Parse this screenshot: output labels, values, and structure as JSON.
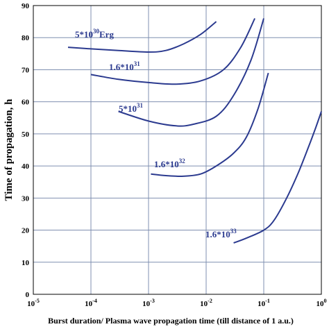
{
  "chart_data": {
    "type": "line",
    "title": "",
    "xlabel": "Burst duration/ Plasma wave propagation time (till distance of 1 a.u.)",
    "ylabel": "Time of propagation, h",
    "x_scale": "log",
    "xlim": [
      1e-05,
      1
    ],
    "ylim": [
      0,
      90
    ],
    "grid": true,
    "x_ticks": [
      {
        "base": "10",
        "exp": "-5",
        "value": 1e-05
      },
      {
        "base": "10",
        "exp": "-4",
        "value": 0.0001
      },
      {
        "base": "10",
        "exp": "-3",
        "value": 0.001
      },
      {
        "base": "10",
        "exp": "-2",
        "value": 0.01
      },
      {
        "base": "10",
        "exp": "-1",
        "value": 0.1
      },
      {
        "base": "10",
        "exp": "0",
        "value": 1
      }
    ],
    "y_ticks": [
      0,
      10,
      20,
      30,
      40,
      50,
      60,
      70,
      80,
      90
    ],
    "line_color": "#2b3a8f",
    "series": [
      {
        "label": {
          "mantissa": "5*10",
          "exp": "30",
          "suffix": "Erg"
        },
        "x": [
          4e-05,
          0.0001,
          0.0003,
          0.001,
          0.002,
          0.004,
          0.008,
          0.015
        ],
        "y": [
          77,
          76.5,
          76,
          75.5,
          76,
          78,
          81,
          85
        ]
      },
      {
        "label": {
          "mantissa": "1.6*10",
          "exp": "31",
          "suffix": ""
        },
        "x": [
          0.0001,
          0.0003,
          0.001,
          0.003,
          0.008,
          0.02,
          0.04,
          0.07
        ],
        "y": [
          68.5,
          67,
          66,
          65.5,
          66.5,
          70,
          77,
          86
        ]
      },
      {
        "label": {
          "mantissa": "5*10",
          "exp": "31",
          "suffix": ""
        },
        "x": [
          0.0003,
          0.001,
          0.003,
          0.006,
          0.015,
          0.03,
          0.06,
          0.1
        ],
        "y": [
          57,
          54,
          52.5,
          53,
          55.5,
          62,
          73,
          86
        ]
      },
      {
        "label": {
          "mantissa": "1.6*10",
          "exp": "32",
          "suffix": ""
        },
        "x": [
          0.0011,
          0.002,
          0.004,
          0.008,
          0.015,
          0.03,
          0.05,
          0.08,
          0.12
        ],
        "y": [
          37.5,
          37,
          36.8,
          37.5,
          40,
          44,
          49,
          58,
          69
        ]
      },
      {
        "label": {
          "mantissa": "1.6*10",
          "exp": "33",
          "suffix": ""
        },
        "x": [
          0.03,
          0.05,
          0.1,
          0.15,
          0.25,
          0.4,
          0.6,
          0.8,
          1
        ],
        "y": [
          16,
          17.5,
          20,
          23,
          30,
          38,
          46,
          52,
          57
        ]
      }
    ]
  }
}
